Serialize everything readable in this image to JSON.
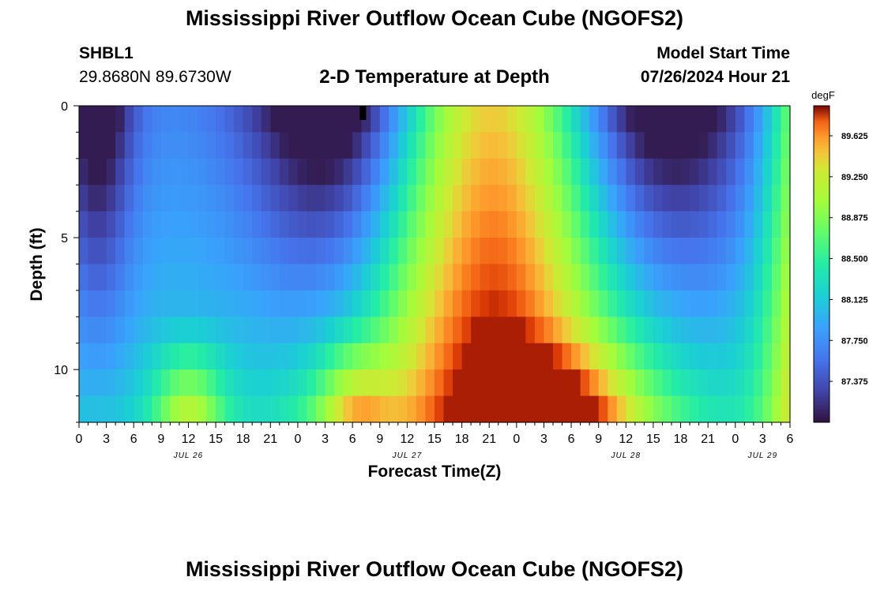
{
  "page": {
    "title": "Mississippi River Outflow Ocean Cube (NGOFS2)",
    "footer_title": "Mississippi River Outflow Ocean Cube (NGOFS2)"
  },
  "station": {
    "id": "SHBL1",
    "coords": "29.8680N  89.6730W"
  },
  "model": {
    "start_label": "Model Start Time",
    "start_value": "07/26/2024 Hour 21"
  },
  "chart_data": {
    "type": "heatmap",
    "title": "2-D Temperature at Depth",
    "xlabel": "Forecast Time(Z)",
    "ylabel": "Depth (ft)",
    "colorbar_unit": "degF",
    "x_hours": [
      0,
      78
    ],
    "x_ticks": [
      {
        "h": 0,
        "label": "0"
      },
      {
        "h": 3,
        "label": "3"
      },
      {
        "h": 6,
        "label": "6"
      },
      {
        "h": 9,
        "label": "9"
      },
      {
        "h": 12,
        "label": "12"
      },
      {
        "h": 15,
        "label": "15"
      },
      {
        "h": 18,
        "label": "18"
      },
      {
        "h": 21,
        "label": "21"
      },
      {
        "h": 24,
        "label": "0"
      },
      {
        "h": 27,
        "label": "3"
      },
      {
        "h": 30,
        "label": "6"
      },
      {
        "h": 33,
        "label": "9"
      },
      {
        "h": 36,
        "label": "12"
      },
      {
        "h": 39,
        "label": "15"
      },
      {
        "h": 42,
        "label": "18"
      },
      {
        "h": 45,
        "label": "21"
      },
      {
        "h": 48,
        "label": "0"
      },
      {
        "h": 51,
        "label": "3"
      },
      {
        "h": 54,
        "label": "6"
      },
      {
        "h": 57,
        "label": "9"
      },
      {
        "h": 60,
        "label": "12"
      },
      {
        "h": 63,
        "label": "15"
      },
      {
        "h": 66,
        "label": "18"
      },
      {
        "h": 69,
        "label": "21"
      },
      {
        "h": 72,
        "label": "0"
      },
      {
        "h": 75,
        "label": "3"
      },
      {
        "h": 78,
        "label": "6"
      }
    ],
    "date_labels": [
      {
        "h": 12,
        "label": "JUL 26"
      },
      {
        "h": 36,
        "label": "JUL 27"
      },
      {
        "h": 60,
        "label": "JUL 28"
      },
      {
        "h": 75,
        "label": "JUL 29"
      }
    ],
    "y_ticks": [
      0,
      5,
      10
    ],
    "ylim": [
      0,
      12
    ],
    "depth_layers": [
      0.5,
      1.5,
      2.5,
      3.5,
      4.5,
      5.5,
      6.5,
      7.5,
      8.5,
      9.5,
      10.5,
      11.5
    ],
    "colorbar_ticks": [
      87.375,
      87.75,
      88.125,
      88.5,
      88.875,
      89.25,
      89.625
    ],
    "colorbar_range": [
      87.0,
      89.9
    ]
  }
}
